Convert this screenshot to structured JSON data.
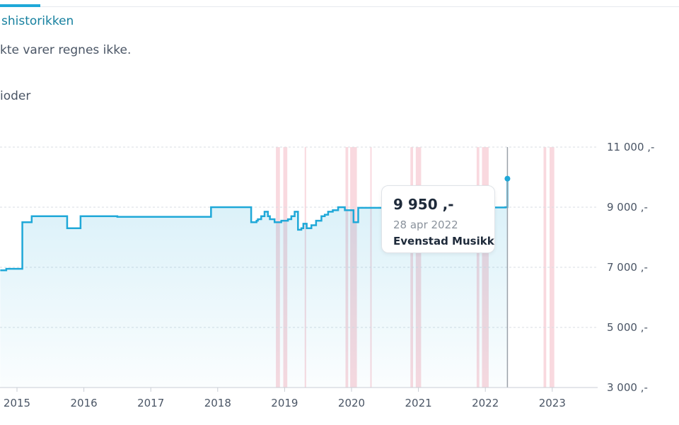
{
  "header": {
    "tab_label": "shistorikken",
    "note": "kte varer regnes ikke.",
    "periods_label": "ioder"
  },
  "colors": {
    "line": "#1fa8d8",
    "fill": "#1fa8d8",
    "sale_band": "#f6c9d2",
    "grid": "#d9dde3",
    "cursor": "#9aa1a9"
  },
  "tooltip": {
    "price": "9 950 ,-",
    "date": "28 apr 2022",
    "store": "Evenstad Musikk"
  },
  "chart_data": {
    "type": "line",
    "x_unit": "year",
    "xlim": [
      2014.75,
      2024.0
    ],
    "ylim": [
      3000,
      11000
    ],
    "ytick_labels": [
      "11 000 ,-",
      "9 000 ,-",
      "7 000 ,-",
      "5 000 ,-",
      "3 000 ,-"
    ],
    "ytick_values": [
      11000,
      9000,
      7000,
      5000,
      3000
    ],
    "xtick_labels": [
      "2015",
      "2016",
      "2017",
      "2018",
      "2019",
      "2020",
      "2021",
      "2022",
      "2023"
    ],
    "xtick_values": [
      2015,
      2016,
      2017,
      2018,
      2019,
      2020,
      2021,
      2022,
      2023
    ],
    "grid": true,
    "series": [
      {
        "step": true,
        "x": [
          2014.75,
          2014.84,
          2015.08,
          2015.22,
          2015.75,
          2015.95,
          2016.5,
          2017.9,
          2018.5,
          2018.58,
          2018.6,
          2018.65,
          2018.7,
          2018.75,
          2018.78,
          2018.85,
          2018.95,
          2019.05,
          2019.1,
          2019.15,
          2019.2,
          2019.25,
          2019.28,
          2019.33,
          2019.4,
          2019.47,
          2019.55,
          2019.6,
          2019.65,
          2019.72,
          2019.8,
          2019.9,
          2020.03,
          2020.1,
          2021.5,
          2022.1,
          2022.3,
          2022.33
        ],
        "y": [
          6900,
          6950,
          8500,
          8700,
          8300,
          8700,
          8680,
          9000,
          8500,
          8550,
          8600,
          8700,
          8850,
          8700,
          8600,
          8500,
          8550,
          8600,
          8700,
          8850,
          8250,
          8300,
          8450,
          8300,
          8400,
          8550,
          8700,
          8750,
          8850,
          8900,
          9000,
          8900,
          8500,
          8980,
          9000,
          8990,
          9000,
          9950
        ]
      }
    ],
    "highlight_point": {
      "x": 2022.33,
      "y": 9950
    },
    "sale_periods": [
      [
        2018.87,
        2018.93
      ],
      [
        2018.98,
        2019.04
      ],
      [
        2019.3,
        2019.32
      ],
      [
        2019.91,
        2019.95
      ],
      [
        2019.98,
        2020.08
      ],
      [
        2020.28,
        2020.3
      ],
      [
        2020.88,
        2020.92
      ],
      [
        2020.96,
        2021.04
      ],
      [
        2021.87,
        2021.91
      ],
      [
        2021.95,
        2022.05
      ],
      [
        2022.87,
        2022.91
      ],
      [
        2022.96,
        2023.03
      ]
    ]
  }
}
